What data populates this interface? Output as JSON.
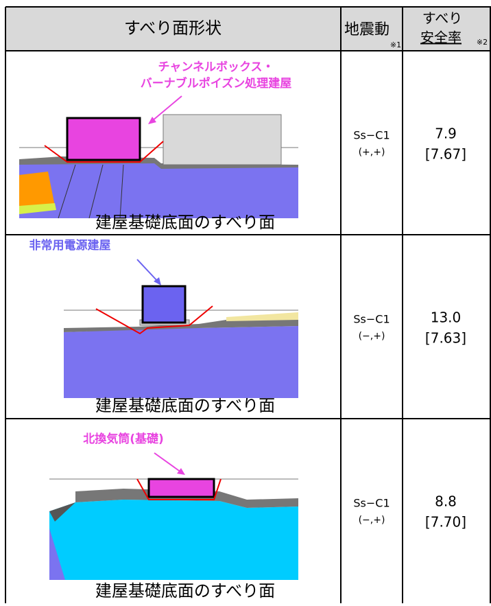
{
  "table": {
    "header": {
      "shape": "すべり面形状",
      "motion": "地震動",
      "motion_note": "※1",
      "safety_line1": "すべり",
      "safety_line2": "安全率",
      "safety_note": "※2"
    },
    "rows": [
      {
        "building_lines": [
          "チャンネルボックス・",
          "バーナブルポイズン処理建屋"
        ],
        "caption": "建屋基礎底面のすべり面",
        "motion": "Ss−C1",
        "sign": "(+,+)",
        "safety": "7.9",
        "safety_bracket": "[7.67]"
      },
      {
        "building_lines": [
          "非常用電源建屋"
        ],
        "caption": "建屋基礎底面のすべり面",
        "motion": "Ss−C1",
        "sign": "(−,+)",
        "safety": "13.0",
        "safety_bracket": "[7.63]"
      },
      {
        "building_lines": [
          "北換気筒(基礎)"
        ],
        "caption": "建屋基礎底面のすべり面",
        "motion": "Ss−C1",
        "sign": "(−,+)",
        "safety": "8.8",
        "safety_bracket": "[7.70]"
      }
    ]
  }
}
